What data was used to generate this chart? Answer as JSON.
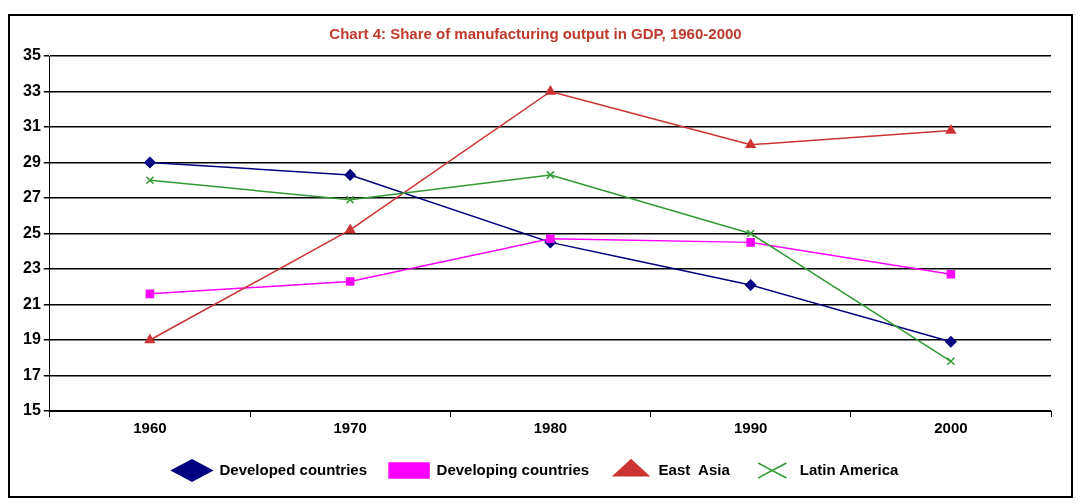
{
  "chart_data": {
    "type": "line",
    "title": "Chart 4: Share of manufacturing output in GDP, 1960-2000",
    "categories": [
      "1960",
      "1970",
      "1980",
      "1990",
      "2000"
    ],
    "series": [
      {
        "name": "Developed countries",
        "color": "#000080",
        "marker": "diamond",
        "values": [
          29,
          28.3,
          24.5,
          22.1,
          18.9
        ]
      },
      {
        "name": "Developing countries",
        "color": "#ff00ff",
        "marker": "square",
        "values": [
          21.6,
          22.3,
          24.7,
          24.5,
          22.7
        ]
      },
      {
        "name": "East  Asia",
        "color": "#cc3333",
        "marker": "triangle",
        "values": [
          19,
          25.2,
          33,
          30,
          30.8
        ]
      },
      {
        "name": "Latin America",
        "color": "#339933",
        "marker": "cross",
        "values": [
          28,
          26.9,
          28.3,
          25,
          17.8
        ]
      }
    ],
    "ylim": [
      15,
      35
    ],
    "yticks": [
      15,
      17,
      19,
      21,
      23,
      25,
      27,
      29,
      31,
      33,
      35
    ],
    "grid": "y",
    "legend": "bottom",
    "line_style": "solid"
  }
}
